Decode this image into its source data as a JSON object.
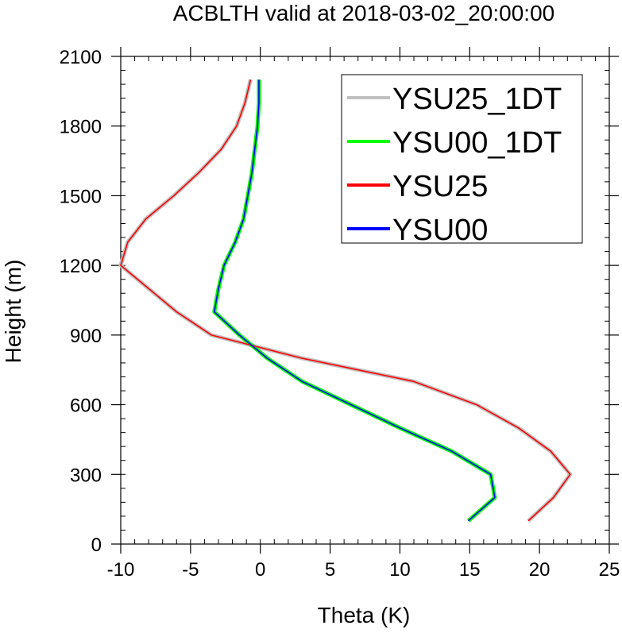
{
  "chart_data": {
    "type": "line",
    "title": "ACBLTH valid at 2018-03-02_20:00:00",
    "xlabel": "Theta (K)",
    "ylabel": "Height (m)",
    "xlim": [
      -10,
      25
    ],
    "ylim": [
      0,
      2100
    ],
    "xticks": [
      -10,
      -5,
      0,
      5,
      10,
      15,
      20,
      25
    ],
    "yticks": [
      0,
      300,
      600,
      900,
      1200,
      1500,
      1800,
      2100
    ],
    "xtick_labels": [
      "-10",
      "-5",
      "0",
      "5",
      "10",
      "15",
      "20",
      "25"
    ],
    "ytick_labels": [
      "0",
      "300",
      "600",
      "900",
      "1200",
      "1500",
      "1800",
      "2100"
    ],
    "legend_position": "top-right",
    "grid": false,
    "series": [
      {
        "name": "YSU25_1DT",
        "color": "#c0c0c0",
        "points": [
          [
            19.2,
            100
          ],
          [
            21.0,
            200
          ],
          [
            22.2,
            300
          ],
          [
            20.8,
            400
          ],
          [
            18.5,
            500
          ],
          [
            15.5,
            600
          ],
          [
            11.0,
            700
          ],
          [
            3.0,
            800
          ],
          [
            -3.5,
            900
          ],
          [
            -6.0,
            1000
          ],
          [
            -8.0,
            1100
          ],
          [
            -10.0,
            1200
          ],
          [
            -9.5,
            1300
          ],
          [
            -8.2,
            1400
          ],
          [
            -6.2,
            1500
          ],
          [
            -4.4,
            1600
          ],
          [
            -2.8,
            1700
          ],
          [
            -1.7,
            1800
          ],
          [
            -1.1,
            1900
          ],
          [
            -0.7,
            2000
          ]
        ]
      },
      {
        "name": "YSU00_1DT",
        "color": "#00ff00",
        "points": [
          [
            14.9,
            100
          ],
          [
            16.8,
            200
          ],
          [
            16.5,
            300
          ],
          [
            13.7,
            400
          ],
          [
            10.0,
            500
          ],
          [
            6.5,
            600
          ],
          [
            3.0,
            700
          ],
          [
            0.5,
            800
          ],
          [
            -1.5,
            900
          ],
          [
            -3.3,
            1000
          ],
          [
            -3.0,
            1100
          ],
          [
            -2.6,
            1200
          ],
          [
            -1.8,
            1300
          ],
          [
            -1.2,
            1400
          ],
          [
            -0.9,
            1500
          ],
          [
            -0.6,
            1600
          ],
          [
            -0.4,
            1700
          ],
          [
            -0.2,
            1800
          ],
          [
            -0.1,
            1900
          ],
          [
            -0.1,
            2000
          ]
        ]
      },
      {
        "name": "YSU25",
        "color": "#ff0000",
        "points": [
          [
            19.2,
            100
          ],
          [
            21.0,
            200
          ],
          [
            22.2,
            300
          ],
          [
            20.8,
            400
          ],
          [
            18.5,
            500
          ],
          [
            15.5,
            600
          ],
          [
            11.0,
            700
          ],
          [
            3.0,
            800
          ],
          [
            -3.5,
            900
          ],
          [
            -6.0,
            1000
          ],
          [
            -8.0,
            1100
          ],
          [
            -10.0,
            1200
          ],
          [
            -9.5,
            1300
          ],
          [
            -8.2,
            1400
          ],
          [
            -6.2,
            1500
          ],
          [
            -4.4,
            1600
          ],
          [
            -2.8,
            1700
          ],
          [
            -1.7,
            1800
          ],
          [
            -1.1,
            1900
          ],
          [
            -0.7,
            2000
          ]
        ]
      },
      {
        "name": "YSU00",
        "color": "#0000ff",
        "points": [
          [
            14.9,
            100
          ],
          [
            16.8,
            200
          ],
          [
            16.5,
            300
          ],
          [
            13.7,
            400
          ],
          [
            10.0,
            500
          ],
          [
            6.5,
            600
          ],
          [
            3.0,
            700
          ],
          [
            0.5,
            800
          ],
          [
            -1.5,
            900
          ],
          [
            -3.3,
            1000
          ],
          [
            -3.0,
            1100
          ],
          [
            -2.6,
            1200
          ],
          [
            -1.8,
            1300
          ],
          [
            -1.2,
            1400
          ],
          [
            -0.9,
            1500
          ],
          [
            -0.6,
            1600
          ],
          [
            -0.4,
            1700
          ],
          [
            -0.2,
            1800
          ],
          [
            -0.1,
            1900
          ],
          [
            -0.1,
            2000
          ]
        ]
      }
    ]
  }
}
